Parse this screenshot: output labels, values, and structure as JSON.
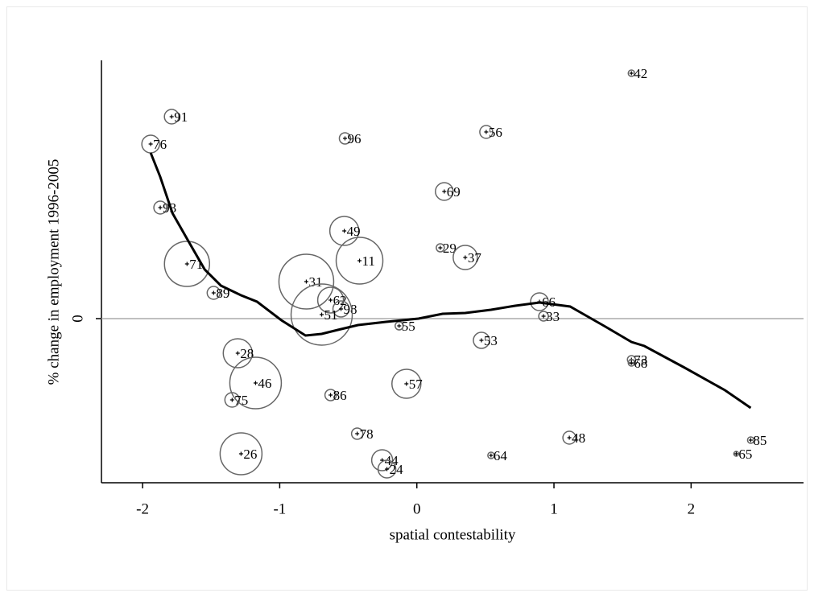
{
  "chart_data": {
    "type": "scatter",
    "x_label": "spatial contestability",
    "y_label": "% change in employment 1996-2005",
    "labels": [
      "42",
      "91",
      "76",
      "96",
      "56",
      "69",
      "93",
      "49",
      "29",
      "37",
      "11",
      "71",
      "31",
      "89",
      "62",
      "66",
      "98",
      "51",
      "33",
      "55",
      "53",
      "28",
      "73",
      "68",
      "46",
      "57",
      "86",
      "75",
      "78",
      "48",
      "85",
      "26",
      "64",
      "65",
      "44",
      "24"
    ],
    "x": [
      1.565,
      -1.788,
      -1.941,
      -0.524,
      0.506,
      0.2,
      -1.871,
      -0.529,
      0.171,
      0.353,
      -0.418,
      -1.676,
      -0.806,
      -1.482,
      -0.629,
      0.894,
      -0.553,
      -0.694,
      0.924,
      -0.129,
      0.471,
      -1.306,
      1.565,
      1.565,
      -1.176,
      -0.076,
      -0.629,
      -1.347,
      -0.435,
      1.112,
      2.435,
      -1.282,
      0.541,
      2.329,
      -0.253,
      -0.218
    ],
    "values": [
      3.05,
      2.51,
      2.17,
      2.24,
      2.32,
      1.58,
      1.38,
      1.09,
      0.88,
      0.76,
      0.72,
      0.68,
      0.46,
      0.32,
      0.23,
      0.21,
      0.12,
      0.05,
      0.03,
      -0.09,
      -0.27,
      -0.43,
      -0.51,
      -0.55,
      -0.8,
      -0.81,
      -0.95,
      -1.01,
      -1.43,
      -1.48,
      -1.51,
      -1.68,
      -1.7,
      -1.68,
      -1.76,
      -1.87
    ],
    "sizes": [
      4,
      9,
      11,
      7,
      8,
      11,
      8,
      18,
      5,
      15,
      29,
      28,
      34,
      8,
      16,
      11,
      10,
      38,
      6,
      5,
      10,
      18,
      5,
      4,
      32,
      18,
      7,
      9,
      7,
      8,
      4,
      26,
      4,
      3,
      13,
      11
    ],
    "color": "#666666",
    "fit": {
      "color": "#000000",
      "x": [
        -1.941,
        -1.871,
        -1.782,
        -1.665,
        -1.547,
        -1.429,
        -1.282,
        -1.165,
        -0.988,
        -0.812,
        -0.694,
        -0.576,
        -0.429,
        -0.224,
        0.012,
        0.188,
        0.353,
        0.541,
        0.718,
        0.894,
        1.118,
        1.365,
        1.565,
        1.659,
        1.953,
        2.247,
        2.435
      ],
      "values": [
        2.06,
        1.76,
        1.31,
        0.96,
        0.61,
        0.41,
        0.29,
        0.21,
        -0.02,
        -0.21,
        -0.19,
        -0.14,
        -0.08,
        -0.04,
        0.0,
        0.06,
        0.07,
        0.11,
        0.16,
        0.2,
        0.15,
        -0.09,
        -0.29,
        -0.34,
        -0.61,
        -0.89,
        -1.11
      ]
    },
    "xlim": [
      -2.3,
      2.82
    ],
    "ylim": [
      -2.04,
      3.21
    ],
    "xticks": [
      -2,
      -1,
      0,
      1,
      2
    ],
    "yticks": [
      0
    ],
    "reference_line": 0
  }
}
